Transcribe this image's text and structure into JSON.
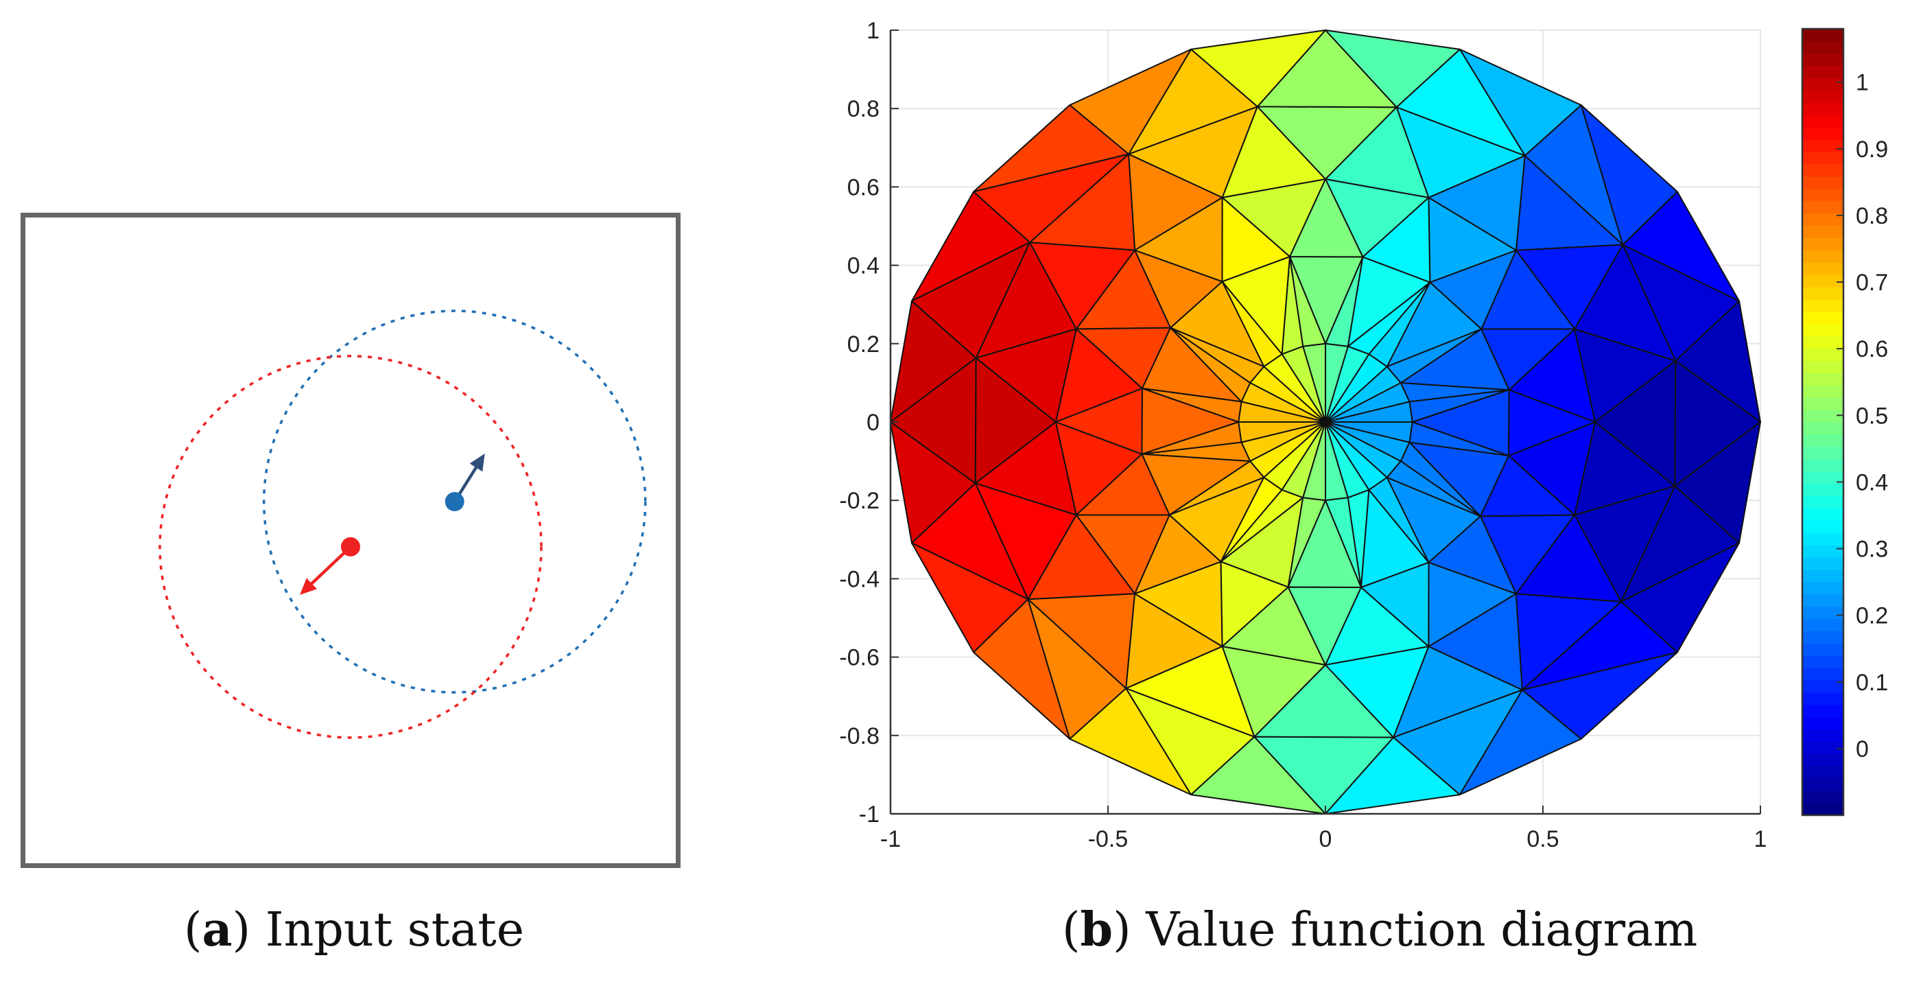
{
  "captions": {
    "a": {
      "letter": "a",
      "text": "Input state"
    },
    "b": {
      "letter": "b",
      "text": "Value function diagram"
    }
  },
  "chart_data": [
    {
      "type": "diagram",
      "panel": "a",
      "agents": [
        {
          "name": "",
          "color": "#1f6fb5",
          "heading_color": "#2f4f7a",
          "ring_style": "dotted",
          "relative_position": [
            0.66,
            0.44
          ],
          "heading": "up-right"
        },
        {
          "name": "",
          "color": "#ee2222",
          "heading_color": "#ee2222",
          "ring_style": "dotted",
          "relative_position": [
            0.5,
            0.51
          ],
          "heading": "down-left"
        }
      ]
    },
    {
      "type": "heatmap",
      "panel": "b",
      "title": "",
      "xlabel": "",
      "ylabel": "",
      "xlim": [
        -1,
        1
      ],
      "ylim": [
        -1,
        1
      ],
      "xticks": [
        "-1",
        "-0.5",
        "0",
        "0.5",
        "1"
      ],
      "yticks": [
        "1",
        "0.8",
        "0.6",
        "0.4",
        "0.2",
        "0",
        "-0.2",
        "-0.4",
        "-0.6",
        "-0.8",
        "-1"
      ],
      "colorbar": {
        "colormap": "jet",
        "range": [
          -0.1,
          1.08
        ],
        "ticks": [
          "1",
          "0.9",
          "0.8",
          "0.7",
          "0.6",
          "0.5",
          "0.4",
          "0.3",
          "0.2",
          "0.1",
          "0"
        ]
      },
      "mesh": {
        "shape": "disk",
        "radius": 1,
        "rings": [
          {
            "radius": 0.2,
            "points": 24,
            "angle_offset_deg": 0
          },
          {
            "radius": 0.43,
            "points": 16,
            "angle_offset_deg": 11
          },
          {
            "radius": 0.62,
            "points": 16,
            "angle_offset_deg": 0
          },
          {
            "radius": 0.82,
            "points": 16,
            "angle_offset_deg": 11
          },
          {
            "radius": 1.0,
            "points": 20,
            "angle_offset_deg": 0
          }
        ],
        "value_field": "increases toward the left (x = -1, value ≈ 1) and decreases toward the right (x = 1, value ≈ -0.05)"
      }
    }
  ]
}
